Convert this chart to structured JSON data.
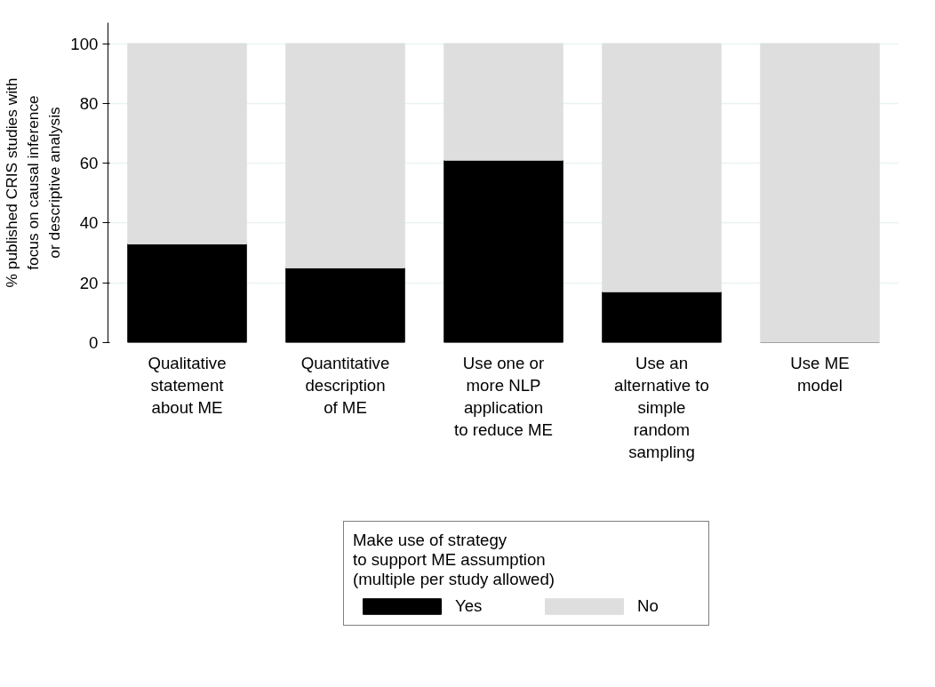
{
  "chart_data": {
    "type": "bar",
    "stacked": true,
    "ylabel": "% published CRIS studies with\nfocus on causal inference\nor descriptive analysis",
    "categories": [
      "Qualitative\nstatement\nabout ME",
      "Quantitative\ndescription\nof ME",
      "Use one or\nmore NLP\napplication\nto reduce ME",
      "Use an\nalternative to\nsimple\nrandom\nsampling",
      "Use ME\nmodel"
    ],
    "series": [
      {
        "name": "Yes",
        "color": "#000000",
        "values": [
          33,
          25,
          61,
          17,
          0
        ]
      },
      {
        "name": "No",
        "color": "#dedede",
        "values": [
          67,
          75,
          39,
          83,
          100
        ]
      }
    ],
    "legend_title": "Make use of strategy\nto support ME assumption\n(multiple per study allowed)",
    "legend": "bottom",
    "ylim": [
      0,
      107
    ],
    "yticks": [
      0,
      20,
      40,
      60,
      80,
      100
    ],
    "grid": "y"
  }
}
